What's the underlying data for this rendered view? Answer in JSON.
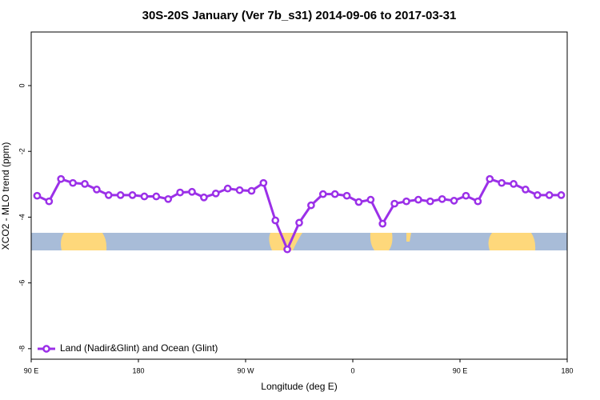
{
  "chart_data": {
    "type": "line",
    "title": "30S-20S January (Ver 7b_s31)   2014-09-06 to 2017-03-31",
    "xlabel": "Longitude (deg E)",
    "ylabel": "XCO2 - MLO trend (ppm)",
    "x": [
      95,
      105,
      115,
      125,
      135,
      145,
      155,
      165,
      175,
      185,
      195,
      205,
      215,
      225,
      235,
      245,
      255,
      265,
      275,
      285,
      295,
      305,
      315,
      325,
      335,
      345,
      355,
      365,
      375,
      385,
      395,
      405,
      415,
      425,
      435,
      445,
      455,
      465,
      475,
      485,
      495,
      505,
      515,
      525,
      535
    ],
    "series": [
      {
        "name": "Land (Nadir&Glint) and Ocean (Glint)",
        "color": "#9b30e8",
        "values": [
          -3.35,
          -3.52,
          -2.84,
          -2.96,
          -2.99,
          -3.16,
          -3.33,
          -3.33,
          -3.33,
          -3.37,
          -3.37,
          -3.45,
          -3.25,
          -3.23,
          -3.4,
          -3.28,
          -3.13,
          -3.18,
          -3.2,
          -2.96,
          -4.1,
          -4.98,
          -4.17,
          -3.64,
          -3.3,
          -3.3,
          -3.35,
          -3.54,
          -3.47,
          -4.2,
          -3.59,
          -3.52,
          -3.47,
          -3.52,
          -3.45,
          -3.5,
          -3.35,
          -3.52,
          -2.84,
          -2.96,
          -2.99,
          -3.16,
          -3.33,
          -3.33,
          -3.33
        ]
      }
    ],
    "xlim": [
      90,
      540
    ],
    "xticks": [
      {
        "value": 90,
        "label": "90 E"
      },
      180,
      {
        "value": 270,
        "label": "90 W"
      },
      {
        "value": 360,
        "label": "0"
      },
      {
        "value": 450,
        "label": "90 E"
      },
      {
        "value": 540,
        "label": "180"
      }
    ],
    "ylim": [
      -8.32,
      1.63
    ],
    "yticks": [
      0,
      -2,
      -4,
      -6,
      -8
    ],
    "legend": "bottom-left"
  }
}
